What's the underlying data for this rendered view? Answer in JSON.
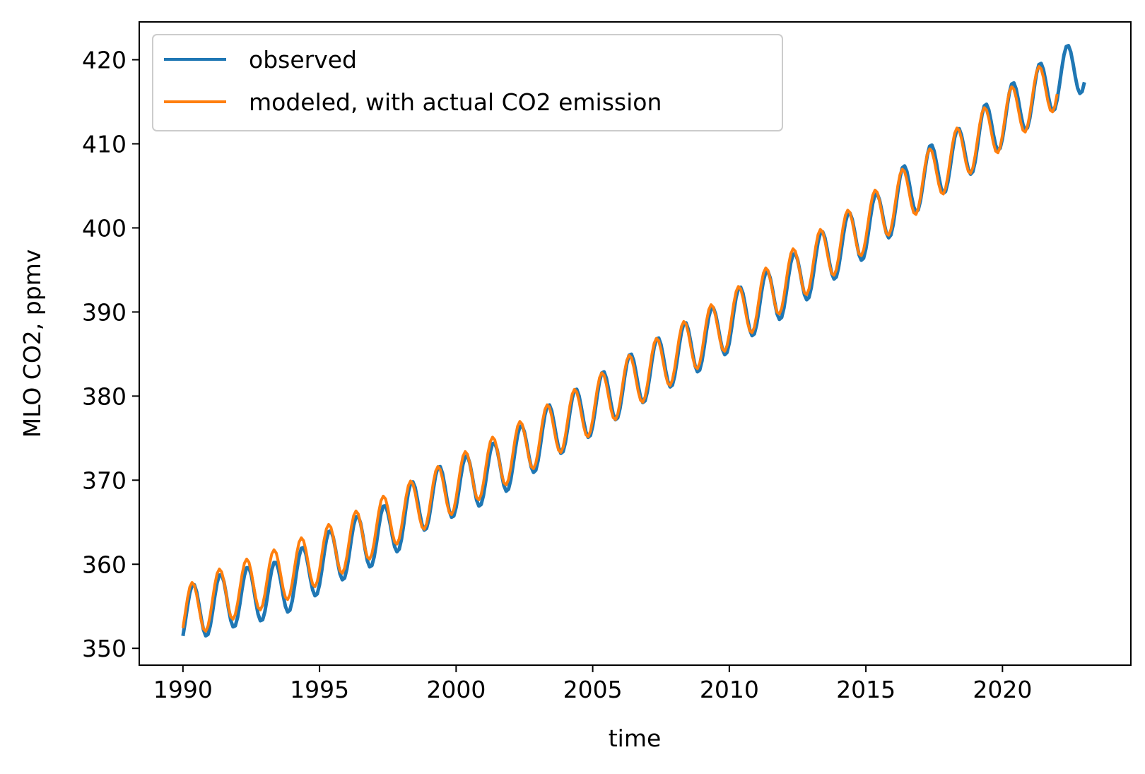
{
  "chart_data": {
    "type": "line",
    "title": "",
    "xlabel": "time",
    "ylabel": "MLO CO2, ppmv",
    "xlim": [
      1988.4,
      2024.7
    ],
    "ylim": [
      348.0,
      424.5
    ],
    "xticks": [
      1990,
      1995,
      2000,
      2005,
      2010,
      2015,
      2020
    ],
    "xtick_labels": [
      "1990",
      "1995",
      "2000",
      "2005",
      "2010",
      "2015",
      "2020"
    ],
    "yticks": [
      350,
      360,
      370,
      380,
      390,
      400,
      410,
      420
    ],
    "ytick_labels": [
      "350",
      "360",
      "370",
      "380",
      "390",
      "400",
      "410",
      "420"
    ],
    "grid": false,
    "legend_position": "upper-left",
    "series": [
      {
        "name": "observed",
        "color": "#1f77b4",
        "description_x_range": [
          1990.0,
          2023.0
        ],
        "annual_means": [
          {
            "year": 1990,
            "mean": 354.4
          },
          {
            "year": 1991,
            "mean": 355.6
          },
          {
            "year": 1992,
            "mean": 356.4
          },
          {
            "year": 1993,
            "mean": 357.0
          },
          {
            "year": 1994,
            "mean": 358.9
          },
          {
            "year": 1995,
            "mean": 360.9
          },
          {
            "year": 1996,
            "mean": 362.6
          },
          {
            "year": 1997,
            "mean": 363.8
          },
          {
            "year": 1998,
            "mean": 366.8
          },
          {
            "year": 1999,
            "mean": 368.5
          },
          {
            "year": 2000,
            "mean": 369.7
          },
          {
            "year": 2001,
            "mean": 371.3
          },
          {
            "year": 2002,
            "mean": 373.4
          },
          {
            "year": 2003,
            "mean": 375.9
          },
          {
            "year": 2004,
            "mean": 377.7
          },
          {
            "year": 2005,
            "mean": 379.8
          },
          {
            "year": 2006,
            "mean": 381.9
          },
          {
            "year": 2007,
            "mean": 383.8
          },
          {
            "year": 2008,
            "mean": 385.6
          },
          {
            "year": 2009,
            "mean": 387.4
          },
          {
            "year": 2010,
            "mean": 389.9
          },
          {
            "year": 2011,
            "mean": 391.7
          },
          {
            "year": 2012,
            "mean": 393.9
          },
          {
            "year": 2013,
            "mean": 396.5
          },
          {
            "year": 2014,
            "mean": 398.7
          },
          {
            "year": 2015,
            "mean": 401.0
          },
          {
            "year": 2016,
            "mean": 404.4
          },
          {
            "year": 2017,
            "mean": 406.8
          },
          {
            "year": 2018,
            "mean": 408.7
          },
          {
            "year": 2019,
            "mean": 411.7
          },
          {
            "year": 2020,
            "mean": 414.2
          },
          {
            "year": 2021,
            "mean": 416.5
          },
          {
            "year": 2022,
            "mean": 418.6
          }
        ],
        "seasonal_amplitude": 3.4,
        "seasonal_peak_fraction": 0.37
      },
      {
        "name": "modeled, with actual CO2 emission",
        "color": "#ff7f0e",
        "description_x_range": [
          1990.0,
          2022.0
        ],
        "annual_means": [
          {
            "year": 1990,
            "mean": 354.8
          },
          {
            "year": 1991,
            "mean": 356.4
          },
          {
            "year": 1992,
            "mean": 357.5
          },
          {
            "year": 1993,
            "mean": 358.6
          },
          {
            "year": 1994,
            "mean": 360.1
          },
          {
            "year": 1995,
            "mean": 361.7
          },
          {
            "year": 1996,
            "mean": 363.3
          },
          {
            "year": 1997,
            "mean": 365.1
          },
          {
            "year": 1998,
            "mean": 366.9
          },
          {
            "year": 1999,
            "mean": 368.6
          },
          {
            "year": 2000,
            "mean": 370.4
          },
          {
            "year": 2001,
            "mean": 372.1
          },
          {
            "year": 2002,
            "mean": 374.0
          },
          {
            "year": 2003,
            "mean": 376.0
          },
          {
            "year": 2004,
            "mean": 377.8
          },
          {
            "year": 2005,
            "mean": 379.8
          },
          {
            "year": 2006,
            "mean": 381.9
          },
          {
            "year": 2007,
            "mean": 383.9
          },
          {
            "year": 2008,
            "mean": 385.9
          },
          {
            "year": 2009,
            "mean": 387.9
          },
          {
            "year": 2010,
            "mean": 390.1
          },
          {
            "year": 2011,
            "mean": 392.3
          },
          {
            "year": 2012,
            "mean": 394.6
          },
          {
            "year": 2013,
            "mean": 396.9
          },
          {
            "year": 2014,
            "mean": 399.2
          },
          {
            "year": 2015,
            "mean": 401.6
          },
          {
            "year": 2016,
            "mean": 404.1
          },
          {
            "year": 2017,
            "mean": 406.5
          },
          {
            "year": 2018,
            "mean": 409.0
          },
          {
            "year": 2019,
            "mean": 411.4
          },
          {
            "year": 2020,
            "mean": 413.9
          },
          {
            "year": 2021,
            "mean": 416.3
          }
        ],
        "seasonal_amplitude": 3.3,
        "seasonal_peak_fraction": 0.33
      }
    ]
  }
}
